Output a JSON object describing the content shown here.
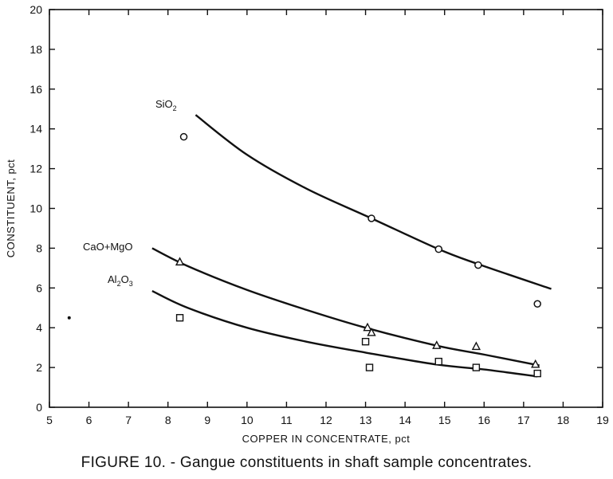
{
  "caption": "FIGURE 10. - Gangue constituents in shaft sample concentrates.",
  "chart_data": {
    "type": "scatter",
    "title": "",
    "xlabel": "COPPER IN CONCENTRATE, pct",
    "ylabel": "CONSTITUENT, pct",
    "xlim": [
      5,
      19
    ],
    "ylim": [
      0,
      20
    ],
    "x_ticks": [
      "5",
      "6",
      "7",
      "8",
      "9",
      "10",
      "11",
      "12",
      "13",
      "14",
      "15",
      "16",
      "17",
      "18",
      "19"
    ],
    "y_ticks": [
      "0",
      "2",
      "4",
      "6",
      "8",
      "10",
      "12",
      "14",
      "16",
      "18",
      "20"
    ],
    "grid": false,
    "series": [
      {
        "name": "SiO2",
        "label_text": "SiO",
        "label_sub": "2",
        "marker": "circle",
        "points": [
          [
            8.4,
            13.6
          ],
          [
            13.15,
            9.5
          ],
          [
            14.85,
            7.95
          ],
          [
            15.85,
            7.15
          ],
          [
            17.35,
            5.2
          ]
        ],
        "curve": [
          [
            8.7,
            14.7
          ],
          [
            10.0,
            12.7
          ],
          [
            11.5,
            11.0
          ],
          [
            13.15,
            9.5
          ],
          [
            14.85,
            7.95
          ],
          [
            15.85,
            7.2
          ],
          [
            17.7,
            5.95
          ]
        ]
      },
      {
        "name": "CaO+MgO",
        "label_text": "CaO+MgO",
        "label_sub": "",
        "marker": "triangle",
        "points": [
          [
            8.3,
            7.3
          ],
          [
            13.05,
            4.0
          ],
          [
            13.15,
            3.75
          ],
          [
            14.8,
            3.1
          ],
          [
            15.8,
            3.05
          ],
          [
            17.3,
            2.15
          ]
        ],
        "curve": [
          [
            7.6,
            8.0
          ],
          [
            8.5,
            7.1
          ],
          [
            10.0,
            5.9
          ],
          [
            11.5,
            4.9
          ],
          [
            13.0,
            4.0
          ],
          [
            14.8,
            3.1
          ],
          [
            16.0,
            2.65
          ],
          [
            17.4,
            2.1
          ]
        ]
      },
      {
        "name": "Al2O3",
        "label_text": "Al",
        "label_sub": "2",
        "label_text2": "O",
        "label_sub2": "3",
        "marker": "square",
        "points": [
          [
            8.3,
            4.5
          ],
          [
            13.0,
            3.3
          ],
          [
            13.1,
            2.0
          ],
          [
            14.85,
            2.3
          ],
          [
            15.8,
            2.0
          ],
          [
            17.35,
            1.7
          ]
        ],
        "curve": [
          [
            7.6,
            5.85
          ],
          [
            8.5,
            5.0
          ],
          [
            10.0,
            4.0
          ],
          [
            11.5,
            3.3
          ],
          [
            13.0,
            2.75
          ],
          [
            14.8,
            2.15
          ],
          [
            16.0,
            1.9
          ],
          [
            17.35,
            1.55
          ]
        ]
      },
      {
        "name": "",
        "marker": "dot",
        "points": [
          [
            5.5,
            4.5
          ]
        ]
      }
    ]
  }
}
